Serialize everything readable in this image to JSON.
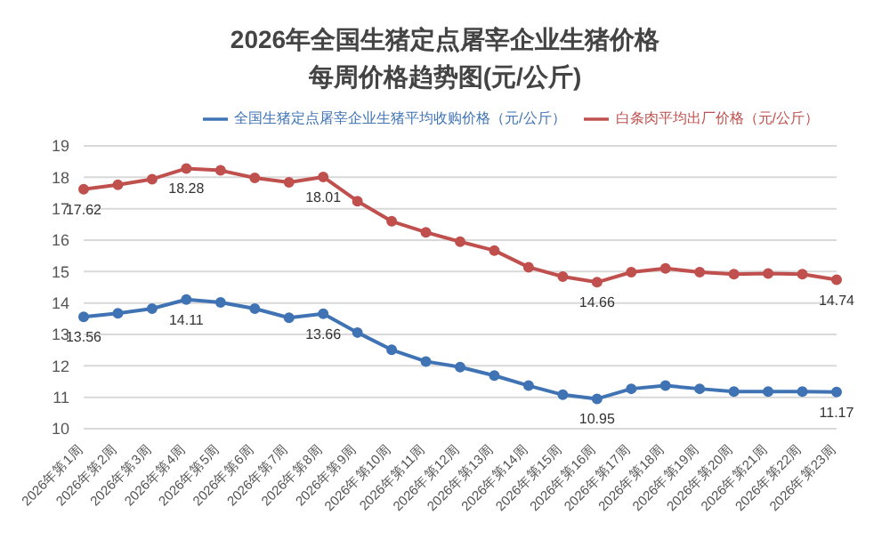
{
  "chart_data": {
    "type": "line",
    "title": "2026年全国生猪定点屠宰企业生猪价格",
    "subtitle": "每周价格趋势图(元/公斤)",
    "categories": [
      "2026年第1周",
      "2026年第2周",
      "2026年第3周",
      "2026年第4周",
      "2026年第5周",
      "2026年第6周",
      "2026年第7周",
      "2026年第8周",
      "2026年第9周",
      "2026年第10周",
      "2026年第11周",
      "2026年第12周",
      "2026年第13周",
      "2026年第14周",
      "2026年第15周",
      "2026年第16周",
      "2026年第17周",
      "2026年第18周",
      "2026年第19周",
      "2026年第20周",
      "2026年第21周",
      "2026年第22周",
      "2026年第23周"
    ],
    "series": [
      {
        "name": "全国生猪定点屠宰企业生猪平均收购价格（元/公斤）",
        "color": "#3f73b4",
        "values": [
          13.56,
          13.67,
          13.82,
          14.11,
          14.02,
          13.82,
          13.53,
          13.66,
          13.06,
          12.51,
          12.14,
          11.96,
          11.69,
          11.37,
          11.08,
          10.95,
          11.27,
          11.37,
          11.27,
          11.18,
          11.18,
          11.18,
          11.17
        ],
        "value_labels": [
          "13.56",
          null,
          null,
          "14.11",
          null,
          null,
          null,
          "13.66",
          null,
          null,
          null,
          null,
          null,
          null,
          null,
          "10.95",
          null,
          null,
          null,
          null,
          null,
          null,
          "11.17"
        ]
      },
      {
        "name": "白条肉平均出厂价格（元/公斤）",
        "color": "#c0504d",
        "values": [
          17.62,
          17.76,
          17.94,
          18.28,
          18.22,
          17.98,
          17.84,
          18.01,
          17.24,
          16.6,
          16.25,
          15.95,
          15.67,
          15.14,
          14.84,
          14.66,
          14.98,
          15.1,
          14.98,
          14.92,
          14.94,
          14.92,
          14.74
        ],
        "value_labels": [
          "17.62",
          null,
          null,
          "18.28",
          null,
          null,
          null,
          "18.01",
          null,
          null,
          null,
          null,
          null,
          null,
          null,
          "14.66",
          null,
          null,
          null,
          null,
          null,
          null,
          "14.74"
        ]
      }
    ],
    "ylim": [
      10,
      19
    ],
    "yticks": [
      10,
      11,
      12,
      13,
      14,
      15,
      16,
      17,
      18,
      19
    ],
    "grid": "y",
    "legend": "top right",
    "marker": "circle",
    "line_style": "solid"
  }
}
